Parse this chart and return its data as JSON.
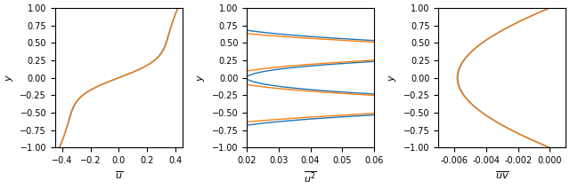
{
  "color_blue": "#1f77b4",
  "color_orange": "#ff7f0e",
  "figsize": [
    6.4,
    2.13
  ],
  "dpi": 100,
  "subplot1": {
    "xlabel": "$\\overline{u}$",
    "ylabel": "$y$",
    "xlim": [
      -0.45,
      0.45
    ],
    "ylim": [
      -1.0,
      1.0
    ],
    "xticks": [
      -0.4,
      -0.2,
      0.0,
      0.2,
      0.4
    ],
    "yticks": [
      -1.0,
      -0.75,
      -0.5,
      -0.25,
      0.0,
      0.25,
      0.5,
      0.75,
      1.0
    ]
  },
  "subplot2": {
    "xlabel": "$\\overline{u^2}$",
    "ylabel": "$y$",
    "xlim": [
      0.02,
      0.06
    ],
    "ylim": [
      -1.0,
      1.0
    ],
    "xticks": [
      0.02,
      0.03,
      0.04,
      0.05,
      0.06
    ],
    "yticks": [
      -1.0,
      -0.75,
      -0.5,
      -0.25,
      0.0,
      0.25,
      0.5,
      0.75,
      1.0
    ]
  },
  "subplot3": {
    "xlabel": "$\\overline{uv}$",
    "ylabel": "$y$",
    "xlim": [
      -0.007,
      0.001
    ],
    "ylim": [
      -1.0,
      1.0
    ],
    "xticks": [
      -0.006,
      -0.004,
      -0.002,
      0.0
    ],
    "yticks": [
      -1.0,
      -0.75,
      -0.5,
      -0.25,
      0.0,
      0.25,
      0.5,
      0.75,
      1.0
    ]
  }
}
